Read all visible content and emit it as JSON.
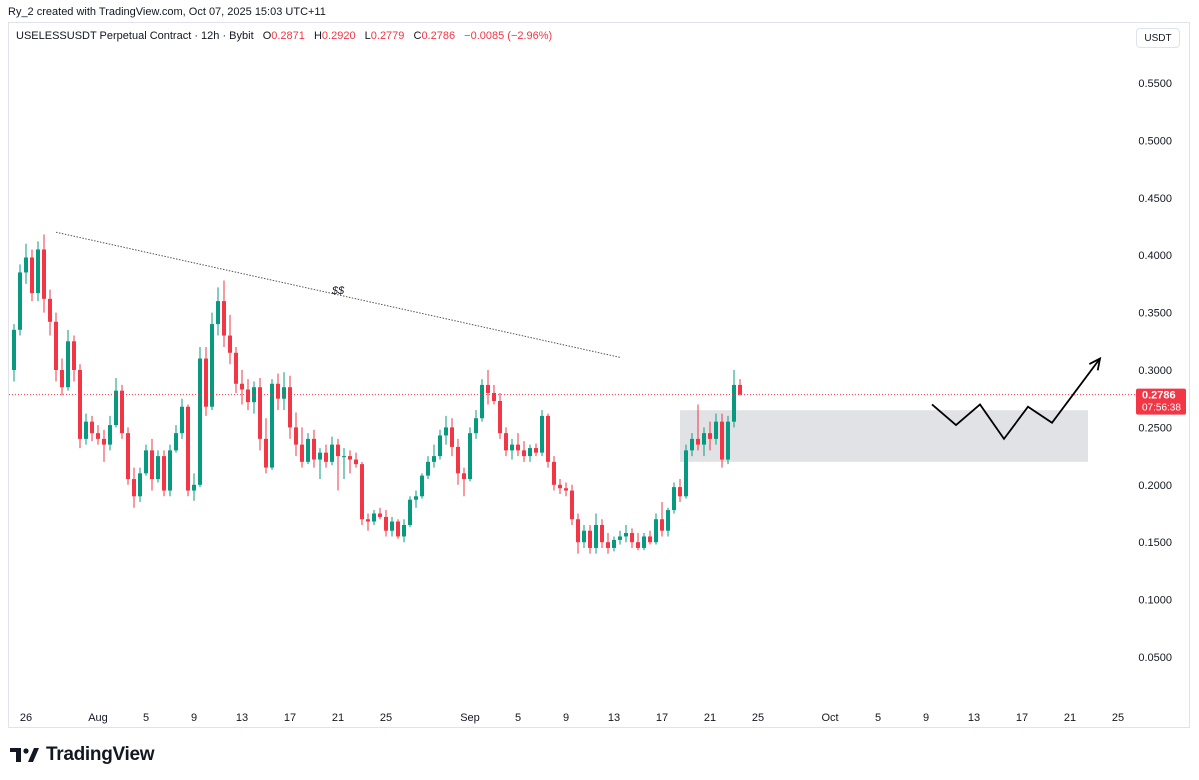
{
  "header": {
    "credit": "Ry_2 created with TradingView.com, Oct 07, 2025 15:03 UTC+11"
  },
  "legend": {
    "symbol": "USELESSUSDT Perpetual Contract · 12h · Bybit",
    "o_label": "O",
    "o_value": "0.2871",
    "h_label": "H",
    "h_value": "0.2920",
    "l_label": "L",
    "l_value": "0.2779",
    "c_label": "C",
    "c_value": "0.2786",
    "change": "−0.0085 (−2.96%)"
  },
  "currency_button": "USDT",
  "brand": {
    "name": "TradingView"
  },
  "colors": {
    "up": "#089981",
    "down": "#f23645",
    "grid": "#f0f3fa",
    "zone": "#dcdde0",
    "trend": "#555555",
    "price_line": "#f23645"
  },
  "chart_data": {
    "type": "candlestick",
    "title": "USELESSUSDT Perpetual Contract · 12h · Bybit",
    "ylim": [
      0.0,
      0.575
    ],
    "y_ticks": [
      "0.5500",
      "0.5000",
      "0.4500",
      "0.4000",
      "0.3500",
      "0.3000",
      "0.2500",
      "0.2000",
      "0.1500",
      "0.1000",
      "0.0500"
    ],
    "y_tick_values": [
      0.55,
      0.5,
      0.45,
      0.4,
      0.35,
      0.3,
      0.25,
      0.2,
      0.15,
      0.1,
      0.05
    ],
    "x_ticks": [
      "26",
      "Aug",
      "5",
      "9",
      "13",
      "17",
      "21",
      "25",
      "Sep",
      "5",
      "9",
      "13",
      "17",
      "21",
      "25",
      "Oct",
      "5",
      "9",
      "13",
      "17",
      "21",
      "25"
    ],
    "x_tick_days": [
      0,
      6,
      10,
      14,
      18,
      22,
      26,
      30,
      37,
      41,
      45,
      49,
      53,
      57,
      61,
      67,
      71,
      75,
      79,
      83,
      87,
      91
    ],
    "grid": false,
    "last_price": {
      "value": 0.2786,
      "label": "0.2786",
      "countdown": "07:56:38"
    },
    "annotations": [
      {
        "type": "trendline",
        "from": [
          2.5,
          0.42
        ],
        "to": [
          49.5,
          0.311
        ],
        "label": "$$"
      },
      {
        "type": "zone",
        "x": [
          54.5,
          88.5
        ],
        "y": [
          0.22,
          0.265
        ]
      },
      {
        "type": "projection_path",
        "points": [
          [
            75.5,
            0.27
          ],
          [
            77.5,
            0.252
          ],
          [
            79.5,
            0.27
          ],
          [
            81.5,
            0.24
          ],
          [
            83.5,
            0.268
          ],
          [
            85.5,
            0.254
          ],
          [
            89.5,
            0.31
          ]
        ]
      }
    ],
    "candles": [
      {
        "o": 0.3,
        "h": 0.34,
        "l": 0.29,
        "c": 0.335
      },
      {
        "o": 0.335,
        "h": 0.392,
        "l": 0.33,
        "c": 0.385
      },
      {
        "o": 0.385,
        "h": 0.41,
        "l": 0.375,
        "c": 0.398
      },
      {
        "o": 0.398,
        "h": 0.405,
        "l": 0.36,
        "c": 0.367
      },
      {
        "o": 0.367,
        "h": 0.412,
        "l": 0.36,
        "c": 0.405
      },
      {
        "o": 0.405,
        "h": 0.418,
        "l": 0.35,
        "c": 0.362
      },
      {
        "o": 0.362,
        "h": 0.37,
        "l": 0.33,
        "c": 0.342
      },
      {
        "o": 0.342,
        "h": 0.35,
        "l": 0.29,
        "c": 0.3
      },
      {
        "o": 0.3,
        "h": 0.31,
        "l": 0.278,
        "c": 0.285
      },
      {
        "o": 0.285,
        "h": 0.335,
        "l": 0.282,
        "c": 0.325
      },
      {
        "o": 0.325,
        "h": 0.33,
        "l": 0.29,
        "c": 0.3
      },
      {
        "o": 0.3,
        "h": 0.305,
        "l": 0.232,
        "c": 0.24
      },
      {
        "o": 0.24,
        "h": 0.262,
        "l": 0.235,
        "c": 0.255
      },
      {
        "o": 0.255,
        "h": 0.26,
        "l": 0.238,
        "c": 0.245
      },
      {
        "o": 0.245,
        "h": 0.252,
        "l": 0.235,
        "c": 0.24
      },
      {
        "o": 0.24,
        "h": 0.248,
        "l": 0.22,
        "c": 0.235
      },
      {
        "o": 0.235,
        "h": 0.26,
        "l": 0.23,
        "c": 0.252
      },
      {
        "o": 0.252,
        "h": 0.293,
        "l": 0.25,
        "c": 0.282
      },
      {
        "o": 0.282,
        "h": 0.287,
        "l": 0.24,
        "c": 0.245
      },
      {
        "o": 0.245,
        "h": 0.25,
        "l": 0.2,
        "c": 0.205
      },
      {
        "o": 0.205,
        "h": 0.215,
        "l": 0.18,
        "c": 0.19
      },
      {
        "o": 0.19,
        "h": 0.215,
        "l": 0.185,
        "c": 0.21
      },
      {
        "o": 0.21,
        "h": 0.235,
        "l": 0.208,
        "c": 0.23
      },
      {
        "o": 0.23,
        "h": 0.24,
        "l": 0.195,
        "c": 0.205
      },
      {
        "o": 0.205,
        "h": 0.23,
        "l": 0.202,
        "c": 0.225
      },
      {
        "o": 0.225,
        "h": 0.23,
        "l": 0.19,
        "c": 0.195
      },
      {
        "o": 0.195,
        "h": 0.235,
        "l": 0.19,
        "c": 0.23
      },
      {
        "o": 0.23,
        "h": 0.252,
        "l": 0.228,
        "c": 0.245
      },
      {
        "o": 0.245,
        "h": 0.275,
        "l": 0.24,
        "c": 0.268
      },
      {
        "o": 0.268,
        "h": 0.27,
        "l": 0.19,
        "c": 0.195
      },
      {
        "o": 0.195,
        "h": 0.21,
        "l": 0.186,
        "c": 0.2
      },
      {
        "o": 0.2,
        "h": 0.32,
        "l": 0.198,
        "c": 0.31
      },
      {
        "o": 0.31,
        "h": 0.32,
        "l": 0.26,
        "c": 0.268
      },
      {
        "o": 0.268,
        "h": 0.35,
        "l": 0.265,
        "c": 0.34
      },
      {
        "o": 0.34,
        "h": 0.372,
        "l": 0.33,
        "c": 0.36
      },
      {
        "o": 0.36,
        "h": 0.378,
        "l": 0.32,
        "c": 0.33
      },
      {
        "o": 0.33,
        "h": 0.348,
        "l": 0.305,
        "c": 0.315
      },
      {
        "o": 0.315,
        "h": 0.32,
        "l": 0.28,
        "c": 0.288
      },
      {
        "o": 0.288,
        "h": 0.3,
        "l": 0.27,
        "c": 0.283
      },
      {
        "o": 0.283,
        "h": 0.292,
        "l": 0.265,
        "c": 0.272
      },
      {
        "o": 0.272,
        "h": 0.29,
        "l": 0.262,
        "c": 0.285
      },
      {
        "o": 0.285,
        "h": 0.293,
        "l": 0.23,
        "c": 0.24
      },
      {
        "o": 0.24,
        "h": 0.258,
        "l": 0.21,
        "c": 0.215
      },
      {
        "o": 0.215,
        "h": 0.292,
        "l": 0.213,
        "c": 0.288
      },
      {
        "o": 0.288,
        "h": 0.297,
        "l": 0.265,
        "c": 0.275
      },
      {
        "o": 0.275,
        "h": 0.298,
        "l": 0.265,
        "c": 0.285
      },
      {
        "o": 0.285,
        "h": 0.295,
        "l": 0.24,
        "c": 0.25
      },
      {
        "o": 0.25,
        "h": 0.263,
        "l": 0.225,
        "c": 0.235
      },
      {
        "o": 0.235,
        "h": 0.25,
        "l": 0.215,
        "c": 0.22
      },
      {
        "o": 0.22,
        "h": 0.245,
        "l": 0.218,
        "c": 0.24
      },
      {
        "o": 0.24,
        "h": 0.248,
        "l": 0.215,
        "c": 0.222
      },
      {
        "o": 0.222,
        "h": 0.232,
        "l": 0.205,
        "c": 0.228
      },
      {
        "o": 0.228,
        "h": 0.235,
        "l": 0.215,
        "c": 0.22
      },
      {
        "o": 0.22,
        "h": 0.242,
        "l": 0.217,
        "c": 0.235
      },
      {
        "o": 0.235,
        "h": 0.24,
        "l": 0.195,
        "c": 0.225
      },
      {
        "o": 0.225,
        "h": 0.232,
        "l": 0.205,
        "c": 0.225
      },
      {
        "o": 0.225,
        "h": 0.23,
        "l": 0.21,
        "c": 0.222
      },
      {
        "o": 0.222,
        "h": 0.228,
        "l": 0.215,
        "c": 0.218
      },
      {
        "o": 0.218,
        "h": 0.22,
        "l": 0.165,
        "c": 0.17
      },
      {
        "o": 0.17,
        "h": 0.175,
        "l": 0.16,
        "c": 0.168
      },
      {
        "o": 0.168,
        "h": 0.178,
        "l": 0.165,
        "c": 0.175
      },
      {
        "o": 0.175,
        "h": 0.18,
        "l": 0.17,
        "c": 0.172
      },
      {
        "o": 0.172,
        "h": 0.178,
        "l": 0.155,
        "c": 0.16
      },
      {
        "o": 0.16,
        "h": 0.172,
        "l": 0.155,
        "c": 0.168
      },
      {
        "o": 0.168,
        "h": 0.17,
        "l": 0.153,
        "c": 0.155
      },
      {
        "o": 0.155,
        "h": 0.17,
        "l": 0.15,
        "c": 0.165
      },
      {
        "o": 0.165,
        "h": 0.19,
        "l": 0.163,
        "c": 0.187
      },
      {
        "o": 0.187,
        "h": 0.195,
        "l": 0.18,
        "c": 0.19
      },
      {
        "o": 0.19,
        "h": 0.21,
        "l": 0.188,
        "c": 0.208
      },
      {
        "o": 0.208,
        "h": 0.225,
        "l": 0.205,
        "c": 0.22
      },
      {
        "o": 0.22,
        "h": 0.235,
        "l": 0.215,
        "c": 0.225
      },
      {
        "o": 0.225,
        "h": 0.248,
        "l": 0.222,
        "c": 0.243
      },
      {
        "o": 0.243,
        "h": 0.26,
        "l": 0.235,
        "c": 0.25
      },
      {
        "o": 0.25,
        "h": 0.258,
        "l": 0.225,
        "c": 0.233
      },
      {
        "o": 0.233,
        "h": 0.24,
        "l": 0.2,
        "c": 0.21
      },
      {
        "o": 0.21,
        "h": 0.215,
        "l": 0.19,
        "c": 0.205
      },
      {
        "o": 0.205,
        "h": 0.25,
        "l": 0.203,
        "c": 0.245
      },
      {
        "o": 0.245,
        "h": 0.265,
        "l": 0.24,
        "c": 0.258
      },
      {
        "o": 0.258,
        "h": 0.292,
        "l": 0.255,
        "c": 0.287
      },
      {
        "o": 0.287,
        "h": 0.3,
        "l": 0.27,
        "c": 0.28
      },
      {
        "o": 0.28,
        "h": 0.287,
        "l": 0.27,
        "c": 0.273
      },
      {
        "o": 0.273,
        "h": 0.28,
        "l": 0.24,
        "c": 0.245
      },
      {
        "o": 0.245,
        "h": 0.25,
        "l": 0.225,
        "c": 0.23
      },
      {
        "o": 0.23,
        "h": 0.24,
        "l": 0.222,
        "c": 0.235
      },
      {
        "o": 0.235,
        "h": 0.245,
        "l": 0.225,
        "c": 0.23
      },
      {
        "o": 0.23,
        "h": 0.238,
        "l": 0.22,
        "c": 0.225
      },
      {
        "o": 0.225,
        "h": 0.235,
        "l": 0.22,
        "c": 0.232
      },
      {
        "o": 0.232,
        "h": 0.236,
        "l": 0.225,
        "c": 0.228
      },
      {
        "o": 0.228,
        "h": 0.265,
        "l": 0.225,
        "c": 0.26
      },
      {
        "o": 0.26,
        "h": 0.262,
        "l": 0.215,
        "c": 0.22
      },
      {
        "o": 0.22,
        "h": 0.225,
        "l": 0.195,
        "c": 0.2
      },
      {
        "o": 0.2,
        "h": 0.205,
        "l": 0.192,
        "c": 0.197
      },
      {
        "o": 0.197,
        "h": 0.202,
        "l": 0.19,
        "c": 0.195
      },
      {
        "o": 0.195,
        "h": 0.2,
        "l": 0.165,
        "c": 0.17
      },
      {
        "o": 0.17,
        "h": 0.175,
        "l": 0.14,
        "c": 0.15
      },
      {
        "o": 0.15,
        "h": 0.165,
        "l": 0.145,
        "c": 0.16
      },
      {
        "o": 0.16,
        "h": 0.165,
        "l": 0.14,
        "c": 0.145
      },
      {
        "o": 0.145,
        "h": 0.175,
        "l": 0.14,
        "c": 0.165
      },
      {
        "o": 0.165,
        "h": 0.17,
        "l": 0.145,
        "c": 0.15
      },
      {
        "o": 0.15,
        "h": 0.158,
        "l": 0.14,
        "c": 0.145
      },
      {
        "o": 0.145,
        "h": 0.155,
        "l": 0.142,
        "c": 0.152
      },
      {
        "o": 0.152,
        "h": 0.16,
        "l": 0.148,
        "c": 0.155
      },
      {
        "o": 0.155,
        "h": 0.165,
        "l": 0.15,
        "c": 0.158
      },
      {
        "o": 0.158,
        "h": 0.162,
        "l": 0.145,
        "c": 0.15
      },
      {
        "o": 0.15,
        "h": 0.158,
        "l": 0.143,
        "c": 0.145
      },
      {
        "o": 0.145,
        "h": 0.158,
        "l": 0.143,
        "c": 0.155
      },
      {
        "o": 0.155,
        "h": 0.16,
        "l": 0.148,
        "c": 0.15
      },
      {
        "o": 0.15,
        "h": 0.175,
        "l": 0.148,
        "c": 0.17
      },
      {
        "o": 0.17,
        "h": 0.185,
        "l": 0.155,
        "c": 0.16
      },
      {
        "o": 0.16,
        "h": 0.18,
        "l": 0.155,
        "c": 0.178
      },
      {
        "o": 0.178,
        "h": 0.202,
        "l": 0.175,
        "c": 0.198
      },
      {
        "o": 0.198,
        "h": 0.205,
        "l": 0.185,
        "c": 0.19
      },
      {
        "o": 0.19,
        "h": 0.235,
        "l": 0.188,
        "c": 0.23
      },
      {
        "o": 0.23,
        "h": 0.245,
        "l": 0.225,
        "c": 0.24
      },
      {
        "o": 0.24,
        "h": 0.27,
        "l": 0.23,
        "c": 0.235
      },
      {
        "o": 0.235,
        "h": 0.25,
        "l": 0.225,
        "c": 0.245
      },
      {
        "o": 0.245,
        "h": 0.255,
        "l": 0.23,
        "c": 0.24
      },
      {
        "o": 0.24,
        "h": 0.262,
        "l": 0.235,
        "c": 0.255
      },
      {
        "o": 0.255,
        "h": 0.262,
        "l": 0.215,
        "c": 0.222
      },
      {
        "o": 0.222,
        "h": 0.26,
        "l": 0.218,
        "c": 0.255
      },
      {
        "o": 0.255,
        "h": 0.3,
        "l": 0.25,
        "c": 0.287
      },
      {
        "o": 0.287,
        "h": 0.292,
        "l": 0.278,
        "c": 0.2786
      }
    ]
  }
}
